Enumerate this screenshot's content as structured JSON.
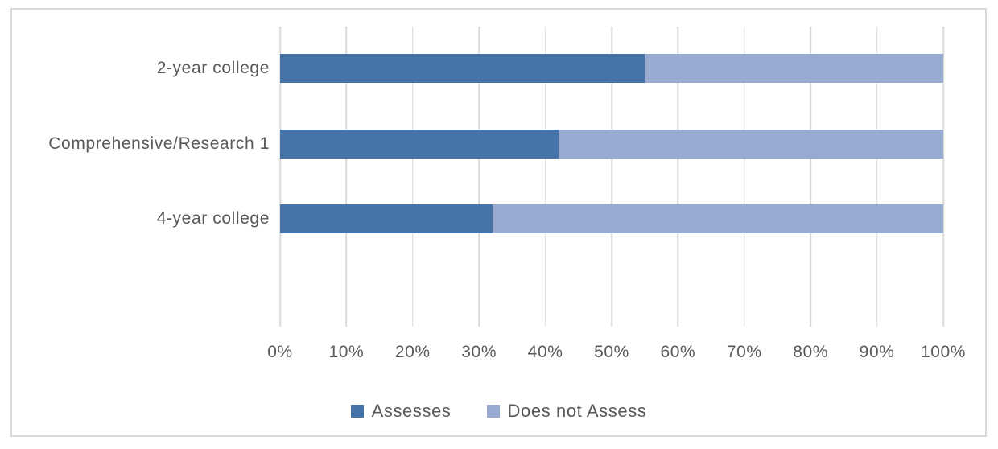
{
  "chart_data": {
    "type": "bar",
    "subtype": "horizontal-stacked",
    "title": "",
    "categories": [
      "2-year college",
      "Comprehensive/Research 1",
      "4-year college"
    ],
    "series": [
      {
        "name": "Assesses",
        "color": "#4674A8",
        "values": [
          55,
          42,
          32
        ]
      },
      {
        "name": "Does not Assess",
        "color": "#96AAD2",
        "values": [
          45,
          58,
          68
        ]
      }
    ],
    "x_axis": {
      "min": 0,
      "max": 100,
      "tick_step": 10,
      "tick_labels": [
        "0%",
        "10%",
        "20%",
        "30%",
        "40%",
        "50%",
        "60%",
        "70%",
        "80%",
        "90%",
        "100%"
      ]
    },
    "xlabel": "",
    "ylabel": "",
    "grid": "vertical",
    "legend": {
      "position": "bottom",
      "entries": [
        "Assesses",
        "Does not Assess"
      ]
    }
  },
  "style": {
    "text_color": "#595959",
    "grid_color": "#D9D9D9",
    "frame_border_color": "#D9D9D9",
    "background_color": "#FFFFFF"
  }
}
